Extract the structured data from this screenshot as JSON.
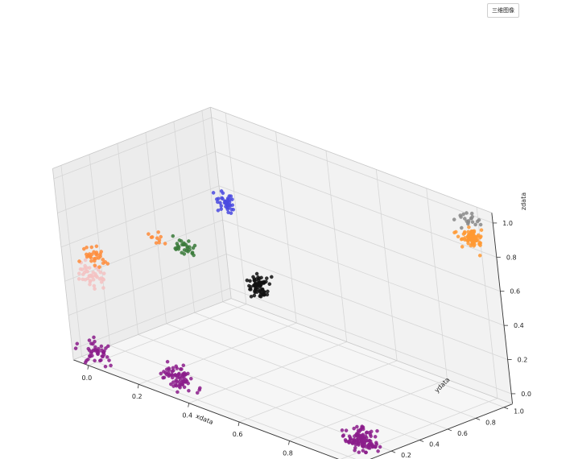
{
  "chart_data": {
    "type": "scatter3d",
    "xlabel": "xdata",
    "ylabel": "ydata",
    "zlabel": "zdata",
    "xlim": [
      0,
      1
    ],
    "ylim": [
      0,
      1
    ],
    "zlim": [
      0,
      1
    ],
    "x_ticks": [
      "0.0",
      "0.2",
      "0.4",
      "0.6",
      "0.8",
      "1.0"
    ],
    "y_ticks": [
      "0.0",
      "0.2",
      "0.4",
      "0.6",
      "0.8",
      "1.0"
    ],
    "z_ticks": [
      "0.0",
      "0.2",
      "0.4",
      "0.6",
      "0.8",
      "1.0"
    ],
    "grid": true,
    "legend": {
      "text": "三维图像",
      "position": "top-right"
    },
    "clusters": [
      {
        "color": "#8b1c8b",
        "center": [
          0.0,
          0.0,
          0.0
        ],
        "spread": [
          0.05,
          0.05,
          0.05
        ],
        "count": 45
      },
      {
        "color": "#8b1c8b",
        "center": [
          0.3,
          0.05,
          0.0
        ],
        "spread": [
          0.05,
          0.05,
          0.05
        ],
        "count": 70
      },
      {
        "color": "#8b1c8b",
        "center": [
          1.0,
          0.1,
          0.0
        ],
        "spread": [
          0.05,
          0.05,
          0.05
        ],
        "count": 110
      },
      {
        "color": "#f4c2c2",
        "center": [
          0.0,
          0.02,
          0.45
        ],
        "spread": [
          0.04,
          0.05,
          0.05
        ],
        "count": 45
      },
      {
        "color": "#ff8c3a",
        "center": [
          0.0,
          0.05,
          0.55
        ],
        "spread": [
          0.04,
          0.04,
          0.04
        ],
        "count": 30
      },
      {
        "color": "#ff8c3a",
        "center": [
          0.0,
          0.5,
          0.5
        ],
        "spread": [
          0.03,
          0.03,
          0.03
        ],
        "count": 10
      },
      {
        "color": "#3a7a3a",
        "center": [
          0.05,
          0.6,
          0.45
        ],
        "spread": [
          0.03,
          0.03,
          0.03
        ],
        "count": 30
      },
      {
        "color": "#111111",
        "center": [
          0.4,
          0.5,
          0.45
        ],
        "spread": [
          0.03,
          0.05,
          0.05
        ],
        "count": 70
      },
      {
        "color": "#4a4ae0",
        "center": [
          0.0,
          1.0,
          0.55
        ],
        "spread": [
          0.04,
          0.04,
          0.04
        ],
        "count": 40
      },
      {
        "color": "#ff9933",
        "center": [
          1.0,
          1.0,
          0.9
        ],
        "spread": [
          0.04,
          0.04,
          0.04
        ],
        "count": 70
      },
      {
        "color": "#888888",
        "center": [
          1.0,
          1.0,
          1.0
        ],
        "spread": [
          0.04,
          0.04,
          0.03
        ],
        "count": 20
      }
    ]
  }
}
